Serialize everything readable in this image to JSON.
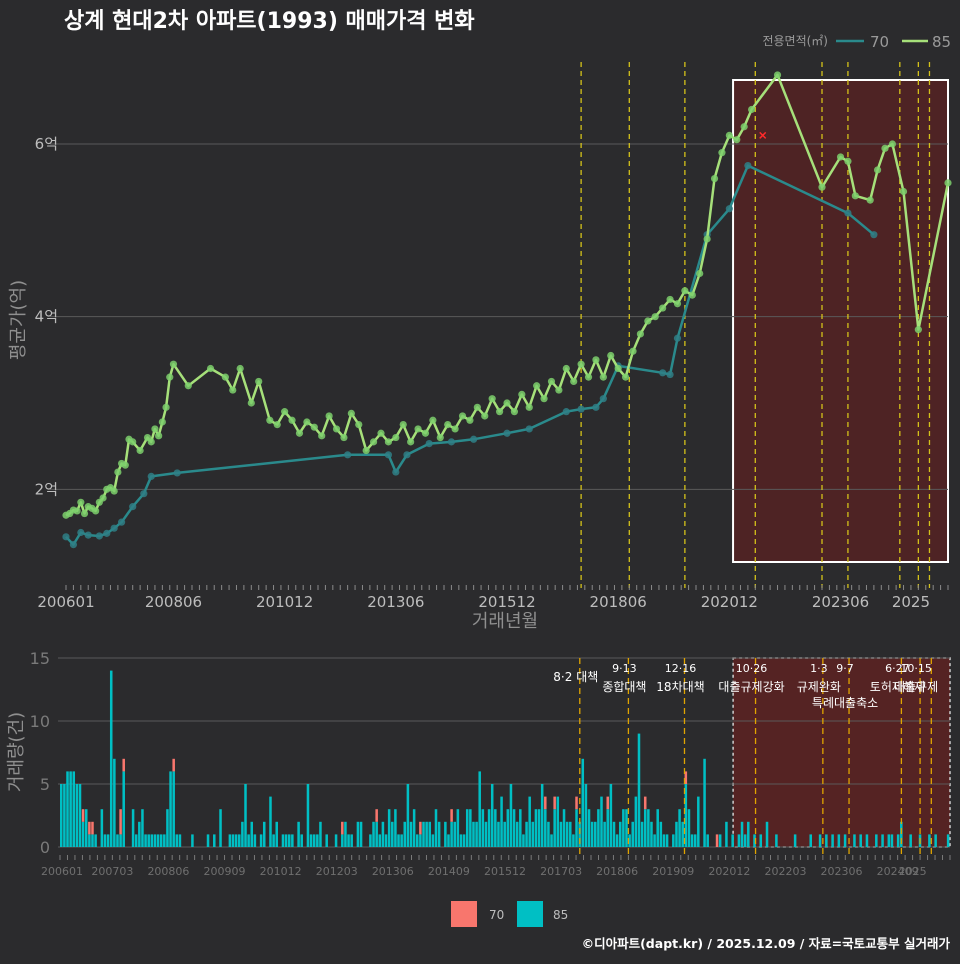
{
  "colors": {
    "background": "#2b2b2d",
    "series_70": "#2a8a8c",
    "series_70_point": "#2f7f86",
    "series_85": "#a6e07a",
    "series_85_point": "#7ccf6c",
    "bar_70": "#f8766d",
    "bar_85": "#00bfc4",
    "policy_line": "#d4c21a",
    "highlight_fill": "#6b1e1e",
    "grid": "#5a5a5a",
    "axis_text": "#bdbdbd"
  },
  "chart_data": [
    {
      "type": "line",
      "title": "상계 현대2차 아파트(1993) 매매가격 변화",
      "xlabel": "거래년월",
      "ylabel": "평균가(억)",
      "legend_title": "전용면적(㎡)",
      "legend_position": "top-right",
      "ylim": [
        0.95,
        6.95
      ],
      "yticks": [
        2,
        4,
        6
      ],
      "ytick_labels": [
        "2억",
        "4억",
        "6억"
      ],
      "x_ticks": [
        "200601",
        "200806",
        "201012",
        "201306",
        "201512",
        "201806",
        "202012",
        "202306",
        "2025"
      ],
      "x_range": [
        "200601",
        "202511"
      ],
      "highlight_range": [
        "202101",
        "202511"
      ],
      "policy_dates": [
        "201708",
        "201809",
        "201912",
        "202107",
        "202301",
        "202308",
        "202410",
        "202503",
        "202506"
      ],
      "marker": {
        "date": "202109",
        "value": 6.1,
        "symbol": "x",
        "color": "#ff2a2a"
      },
      "series": [
        {
          "name": "70",
          "points": [
            [
              "200601",
              1.45
            ],
            [
              "200603",
              1.36
            ],
            [
              "200605",
              1.5
            ],
            [
              "200607",
              1.47
            ],
            [
              "200610",
              1.46
            ],
            [
              "200612",
              1.49
            ],
            [
              "200702",
              1.55
            ],
            [
              "200704",
              1.62
            ],
            [
              "200707",
              1.8
            ],
            [
              "200710",
              1.95
            ],
            [
              "200712",
              2.15
            ],
            [
              "200807",
              2.19
            ],
            [
              "201205",
              2.4
            ],
            [
              "201304",
              2.4
            ],
            [
              "201306",
              2.2
            ],
            [
              "201309",
              2.4
            ],
            [
              "201403",
              2.53
            ],
            [
              "201409",
              2.55
            ],
            [
              "201503",
              2.58
            ],
            [
              "201512",
              2.65
            ],
            [
              "201606",
              2.7
            ],
            [
              "201704",
              2.9
            ],
            [
              "201708",
              2.93
            ],
            [
              "201712",
              2.95
            ],
            [
              "201802",
              3.05
            ],
            [
              "201806",
              3.43
            ],
            [
              "201906",
              3.35
            ],
            [
              "201908",
              3.33
            ],
            [
              "201910",
              3.75
            ],
            [
              "202006",
              4.95
            ],
            [
              "202012",
              5.25
            ],
            [
              "202105",
              5.75
            ],
            [
              "202308",
              5.2
            ],
            [
              "202403",
              4.95
            ]
          ]
        },
        {
          "name": "85",
          "points": [
            [
              "200601",
              1.7
            ],
            [
              "200602",
              1.72
            ],
            [
              "200603",
              1.76
            ],
            [
              "200604",
              1.75
            ],
            [
              "200605",
              1.85
            ],
            [
              "200606",
              1.72
            ],
            [
              "200607",
              1.8
            ],
            [
              "200608",
              1.78
            ],
            [
              "200609",
              1.75
            ],
            [
              "200610",
              1.85
            ],
            [
              "200611",
              1.9
            ],
            [
              "200612",
              2.0
            ],
            [
              "200701",
              2.02
            ],
            [
              "200702",
              1.98
            ],
            [
              "200703",
              2.2
            ],
            [
              "200704",
              2.3
            ],
            [
              "200705",
              2.28
            ],
            [
              "200706",
              2.58
            ],
            [
              "200707",
              2.55
            ],
            [
              "200709",
              2.45
            ],
            [
              "200711",
              2.6
            ],
            [
              "200712",
              2.55
            ],
            [
              "200801",
              2.7
            ],
            [
              "200802",
              2.62
            ],
            [
              "200803",
              2.78
            ],
            [
              "200804",
              2.95
            ],
            [
              "200805",
              3.3
            ],
            [
              "200806",
              3.45
            ],
            [
              "200810",
              3.2
            ],
            [
              "200904",
              3.4
            ],
            [
              "200908",
              3.3
            ],
            [
              "200910",
              3.15
            ],
            [
              "200912",
              3.4
            ],
            [
              "201003",
              3.0
            ],
            [
              "201005",
              3.25
            ],
            [
              "201008",
              2.8
            ],
            [
              "201010",
              2.75
            ],
            [
              "201012",
              2.9
            ],
            [
              "201102",
              2.8
            ],
            [
              "201104",
              2.65
            ],
            [
              "201106",
              2.78
            ],
            [
              "201108",
              2.72
            ],
            [
              "201110",
              2.62
            ],
            [
              "201112",
              2.85
            ],
            [
              "201202",
              2.7
            ],
            [
              "201204",
              2.6
            ],
            [
              "201206",
              2.88
            ],
            [
              "201208",
              2.75
            ],
            [
              "201210",
              2.45
            ],
            [
              "201212",
              2.55
            ],
            [
              "201302",
              2.65
            ],
            [
              "201304",
              2.55
            ],
            [
              "201306",
              2.6
            ],
            [
              "201308",
              2.75
            ],
            [
              "201310",
              2.55
            ],
            [
              "201312",
              2.7
            ],
            [
              "201402",
              2.65
            ],
            [
              "201404",
              2.8
            ],
            [
              "201406",
              2.6
            ],
            [
              "201408",
              2.75
            ],
            [
              "201410",
              2.7
            ],
            [
              "201412",
              2.85
            ],
            [
              "201502",
              2.8
            ],
            [
              "201504",
              2.95
            ],
            [
              "201506",
              2.85
            ],
            [
              "201508",
              3.05
            ],
            [
              "201510",
              2.9
            ],
            [
              "201512",
              3.0
            ],
            [
              "201602",
              2.9
            ],
            [
              "201604",
              3.1
            ],
            [
              "201606",
              2.95
            ],
            [
              "201608",
              3.2
            ],
            [
              "201610",
              3.05
            ],
            [
              "201612",
              3.25
            ],
            [
              "201702",
              3.15
            ],
            [
              "201704",
              3.4
            ],
            [
              "201706",
              3.25
            ],
            [
              "201708",
              3.45
            ],
            [
              "201710",
              3.3
            ],
            [
              "201712",
              3.5
            ],
            [
              "201802",
              3.3
            ],
            [
              "201804",
              3.55
            ],
            [
              "201806",
              3.4
            ],
            [
              "201808",
              3.3
            ],
            [
              "201810",
              3.6
            ],
            [
              "201812",
              3.8
            ],
            [
              "201902",
              3.95
            ],
            [
              "201904",
              4.0
            ],
            [
              "201906",
              4.1
            ],
            [
              "201908",
              4.2
            ],
            [
              "201910",
              4.15
            ],
            [
              "201912",
              4.3
            ],
            [
              "202002",
              4.25
            ],
            [
              "202004",
              4.5
            ],
            [
              "202006",
              4.9
            ],
            [
              "202008",
              5.6
            ],
            [
              "202010",
              5.9
            ],
            [
              "202012",
              6.1
            ],
            [
              "202102",
              6.05
            ],
            [
              "202104",
              6.2
            ],
            [
              "202106",
              6.4
            ],
            [
              "202201",
              6.8
            ],
            [
              "202301",
              5.5
            ],
            [
              "202306",
              5.85
            ],
            [
              "202308",
              5.8
            ],
            [
              "202310",
              5.4
            ],
            [
              "202402",
              5.35
            ],
            [
              "202404",
              5.7
            ],
            [
              "202406",
              5.95
            ],
            [
              "202408",
              6.0
            ],
            [
              "202411",
              5.45
            ],
            [
              "202503",
              3.85
            ],
            [
              "202511",
              5.55
            ]
          ]
        }
      ]
    },
    {
      "type": "bar",
      "ylabel": "거래량(건)",
      "ylim": [
        0,
        15
      ],
      "yticks": [
        0,
        5,
        10,
        15
      ],
      "x_ticks": [
        "200601",
        "200703",
        "200806",
        "200909",
        "201012",
        "201203",
        "201306",
        "201409",
        "201512",
        "201703",
        "201806",
        "201909",
        "202012",
        "202203",
        "202306",
        "202409",
        "2025"
      ],
      "stacked": true,
      "legend": [
        "70",
        "85"
      ],
      "legend_position": "bottom",
      "volume_70": [
        [
          7,
          1
        ],
        [
          8,
          0
        ],
        [
          9,
          1
        ],
        [
          10,
          1
        ],
        [
          19,
          2
        ],
        [
          20,
          1
        ],
        [
          35,
          0
        ],
        [
          36,
          1
        ],
        [
          90,
          1
        ],
        [
          101,
          1
        ],
        [
          115,
          1
        ],
        [
          125,
          1
        ],
        [
          155,
          1
        ],
        [
          158,
          1
        ],
        [
          165,
          1
        ],
        [
          175,
          1
        ],
        [
          187,
          1
        ],
        [
          200,
          1
        ],
        [
          210,
          1
        ]
      ],
      "volume_85": [
        5,
        5,
        6,
        6,
        6,
        5,
        5,
        2,
        3,
        1,
        1,
        1,
        0,
        3,
        1,
        1,
        14,
        7,
        1,
        1,
        6,
        0,
        0,
        3,
        1,
        2,
        3,
        1,
        1,
        1,
        1,
        1,
        1,
        1,
        3,
        6,
        6,
        1,
        1,
        0,
        0,
        0,
        1,
        0,
        0,
        0,
        0,
        1,
        0,
        1,
        0,
        3,
        0,
        0,
        1,
        1,
        1,
        1,
        2,
        5,
        1,
        2,
        1,
        0,
        1,
        2,
        0,
        4,
        1,
        2,
        0,
        1,
        1,
        1,
        1,
        0,
        2,
        1,
        0,
        5,
        1,
        1,
        1,
        2,
        0,
        1,
        0,
        0,
        1,
        0,
        1,
        2,
        1,
        1,
        0,
        2,
        2,
        0,
        0,
        1,
        2,
        2,
        1,
        2,
        1,
        3,
        2,
        3,
        1,
        1,
        2,
        5,
        2,
        3,
        1,
        1,
        2,
        2,
        2,
        1,
        3,
        2,
        0,
        2,
        1,
        2,
        2,
        3,
        1,
        1,
        3,
        3,
        2,
        2,
        6,
        3,
        2,
        3,
        5,
        3,
        2,
        4,
        2,
        3,
        5,
        3,
        2,
        3,
        1,
        2,
        4,
        2,
        3,
        3,
        5,
        3,
        2,
        1,
        3,
        4,
        2,
        3,
        2,
        2,
        1,
        3,
        2,
        7,
        5,
        3,
        2,
        2,
        3,
        4,
        2,
        3,
        5,
        2,
        1,
        2,
        3,
        3,
        1,
        2,
        4,
        9,
        2,
        3,
        3,
        2,
        1,
        3,
        2,
        1,
        1,
        0,
        1,
        2,
        3,
        2,
        5,
        3,
        1,
        1,
        4,
        0,
        7,
        1,
        0,
        0,
        0,
        1,
        0,
        2,
        0,
        1,
        0,
        1,
        2,
        1,
        2,
        0,
        1,
        0,
        1,
        0,
        2,
        0,
        0,
        1,
        0,
        0,
        0,
        0,
        0,
        1,
        0,
        0,
        0,
        0,
        1,
        0,
        0,
        1,
        0,
        1,
        0,
        1,
        0,
        1,
        0,
        1,
        0,
        0,
        1,
        0,
        1,
        0,
        1,
        0,
        0,
        1,
        0,
        1,
        0,
        1,
        1,
        0,
        1,
        2,
        0,
        0,
        1,
        0,
        0,
        1,
        0,
        0,
        1,
        0,
        1,
        0,
        0,
        0,
        1
      ],
      "policy_labels": [
        {
          "date": "201708",
          "date_label": "",
          "text": "8·2 대책"
        },
        {
          "date": "201809",
          "date_label": "9·13",
          "text": "종합대책"
        },
        {
          "date": "201912",
          "date_label": "12·16",
          "text": "18차대책"
        },
        {
          "date": "202107",
          "date_label": "10·26",
          "text": "대출규제강화"
        },
        {
          "date": "202301",
          "date_label": "1·3",
          "text": "규제완화"
        },
        {
          "date": "202308",
          "date_label": "9·7",
          "text": "특례대출축소"
        },
        {
          "date": "202410",
          "date_label": "6·27",
          "text": "토허제해제"
        },
        {
          "date": "202503",
          "date_label": "10·15",
          "text": "대출규제"
        }
      ]
    }
  ],
  "footer": {
    "credit": "©디아파트(dapt.kr) / 2025.12.09 / 자료=국토교통부 실거래가"
  }
}
